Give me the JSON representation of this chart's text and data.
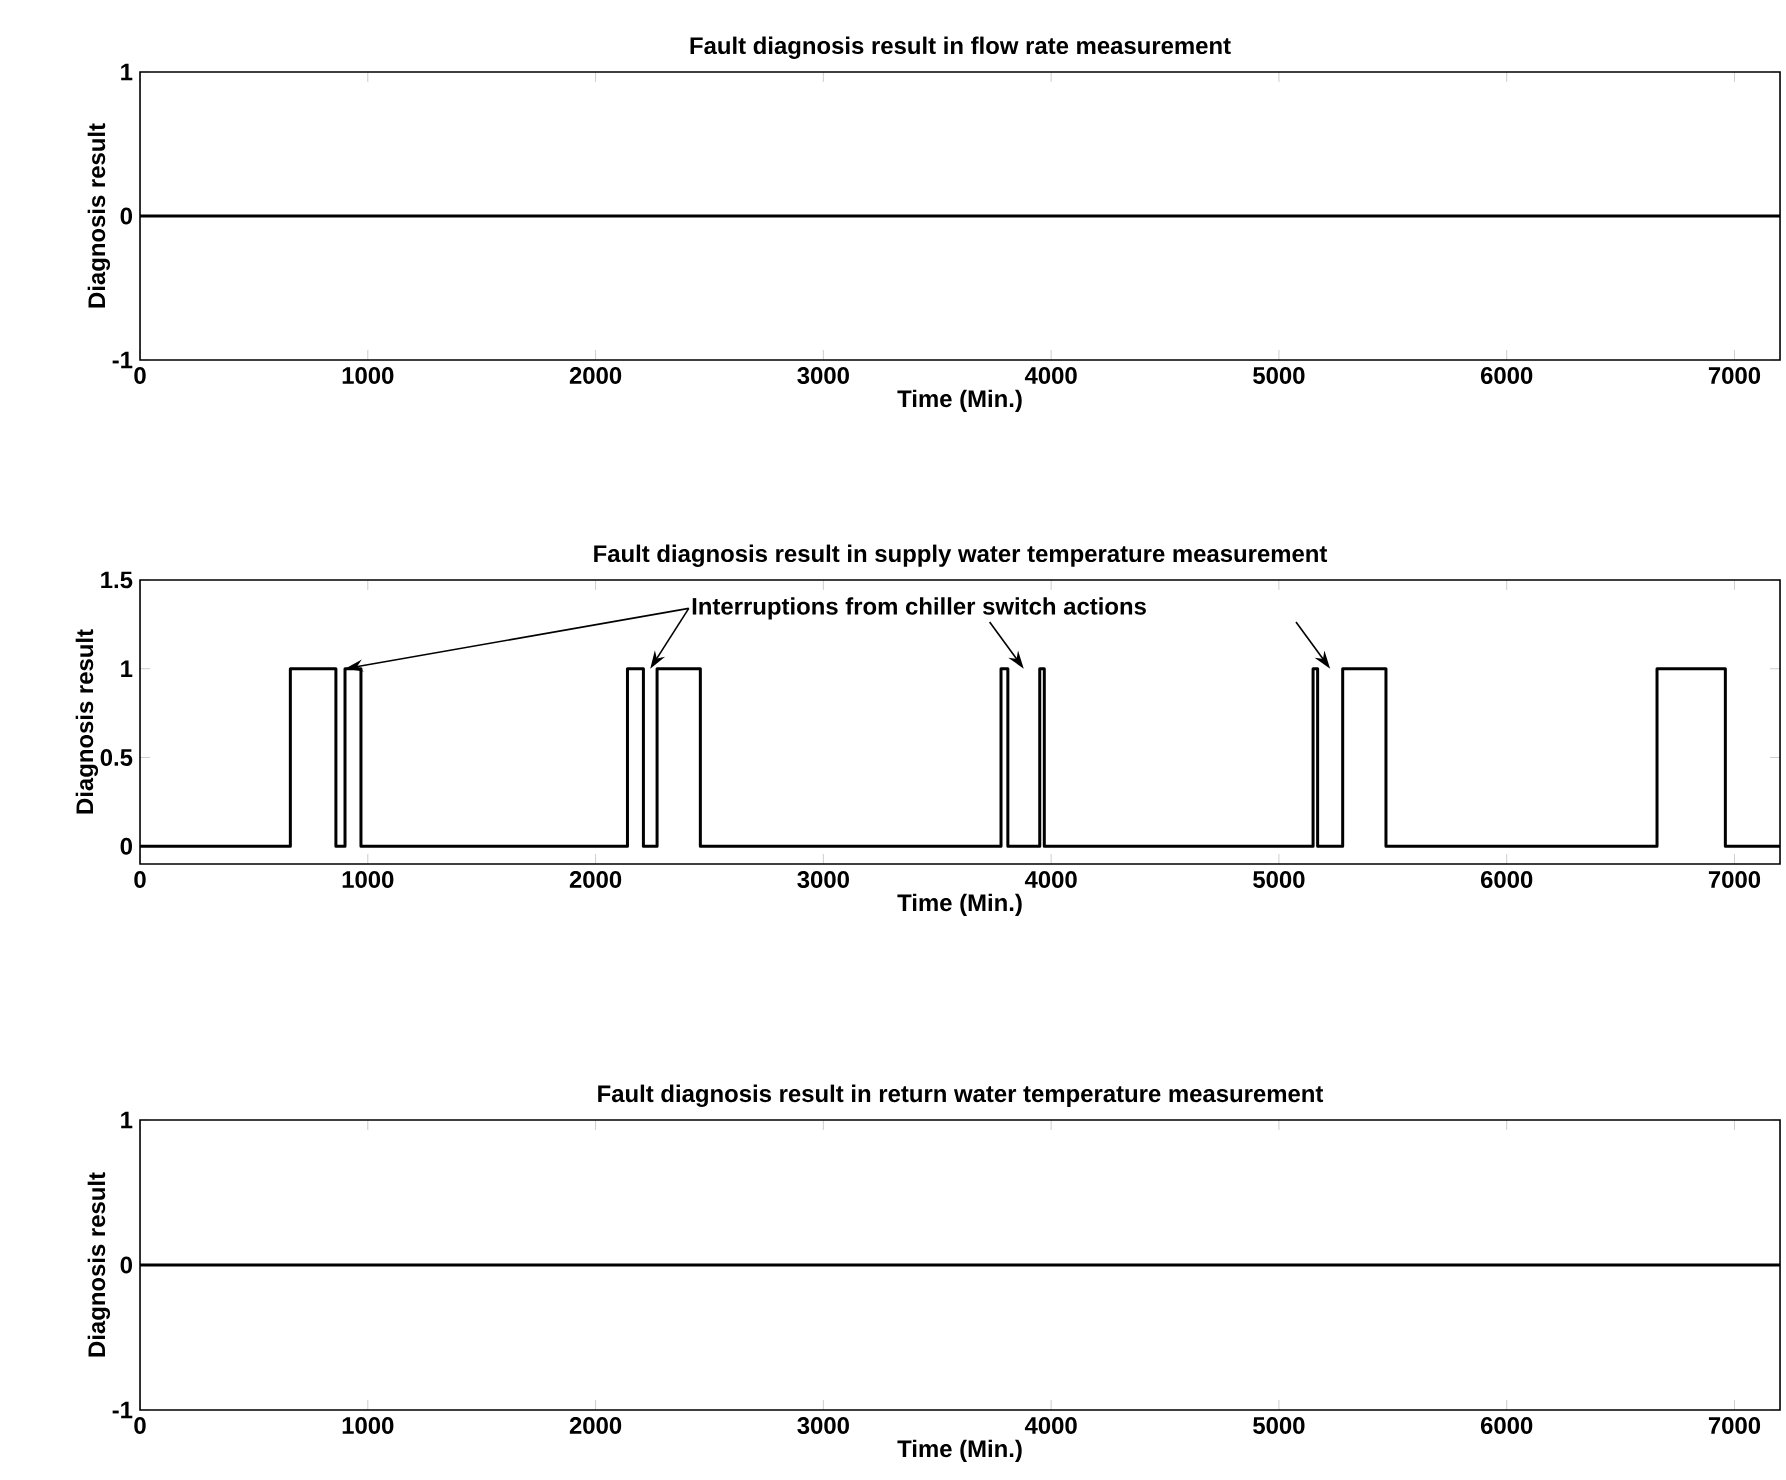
{
  "chart_data": [
    {
      "type": "line",
      "title": "Fault diagnosis result in flow rate measurement",
      "xlabel": "Time (Min.)",
      "ylabel": "Diagnosis result",
      "x": [
        0,
        7200
      ],
      "values": [
        0,
        0
      ],
      "color": "#000000",
      "xlim": [
        0,
        7200
      ],
      "ylim": [
        -1,
        1
      ],
      "xticks": [
        0,
        1000,
        2000,
        3000,
        4000,
        5000,
        6000,
        7000
      ],
      "yticks": [
        -1,
        0,
        1
      ]
    },
    {
      "type": "step",
      "title": "Fault diagnosis result in supply water temperature measurement",
      "xlabel": "Time (Min.)",
      "ylabel": "Diagnosis result",
      "x": [
        0,
        660,
        860,
        900,
        970,
        2140,
        2210,
        2270,
        2460,
        3780,
        3810,
        3950,
        3970,
        5150,
        5170,
        5280,
        5470,
        6660,
        6960,
        7200
      ],
      "values": [
        0,
        1,
        0,
        1,
        0,
        1,
        0,
        1,
        0,
        1,
        0,
        1,
        0,
        1,
        0,
        1,
        0,
        1,
        0,
        0
      ],
      "color": "#000000",
      "xlim": [
        0,
        7200
      ],
      "ylim": [
        -0.1,
        1.5
      ],
      "xticks": [
        0,
        1000,
        2000,
        3000,
        4000,
        5000,
        6000,
        7000
      ],
      "yticks": [
        0,
        0.5,
        1,
        1.5
      ],
      "annotations": [
        {
          "text": "Interruptions from chiller switch actions",
          "x": 900,
          "y": 1
        }
      ]
    },
    {
      "type": "line",
      "title": "Fault diagnosis result in return water temperature measurement",
      "xlabel": "Time (Min.)",
      "ylabel": "Diagnosis result",
      "x": [
        0,
        7200
      ],
      "values": [
        0,
        0
      ],
      "color": "#000000",
      "xlim": [
        0,
        7200
      ],
      "ylim": [
        -1,
        1
      ],
      "xticks": [
        0,
        1000,
        2000,
        3000,
        4000,
        5000,
        6000,
        7000
      ],
      "yticks": [
        -1,
        0,
        1
      ]
    }
  ]
}
